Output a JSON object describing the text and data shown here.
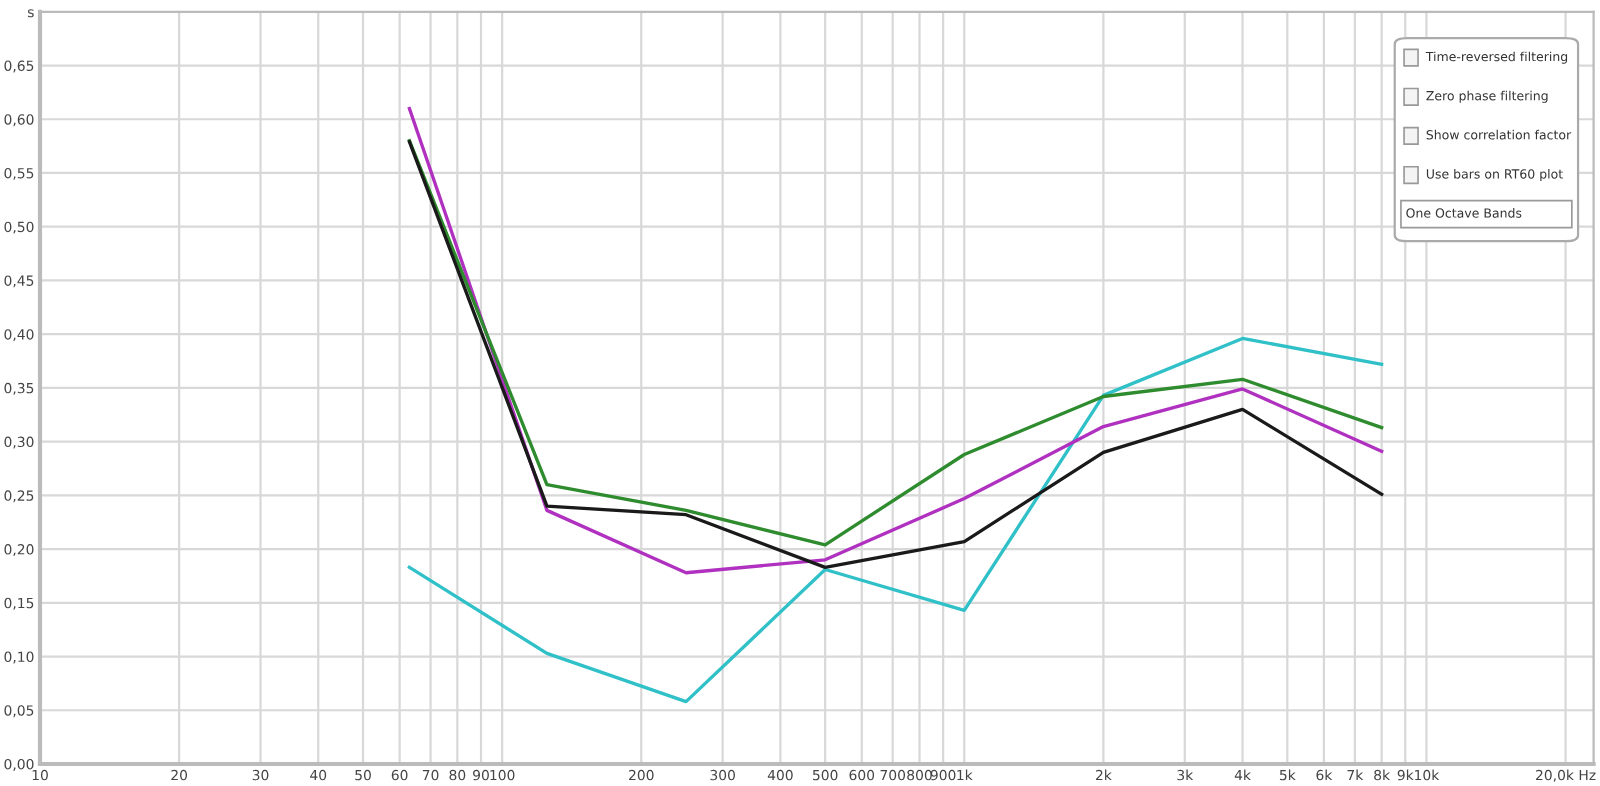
{
  "chart_data": {
    "type": "line",
    "x": [
      63,
      125,
      250,
      500,
      1000,
      2000,
      4000,
      8000
    ],
    "series": [
      {
        "color": "#30c0c8",
        "values": [
          0.183,
          0.103,
          0.058,
          0.181,
          0.143,
          0.343,
          0.396,
          0.372
        ]
      },
      {
        "color": "#b030c0",
        "values": [
          0.61,
          0.236,
          0.178,
          0.19,
          0.247,
          0.314,
          0.349,
          0.291
        ]
      },
      {
        "color": "#2e8b2e",
        "values": [
          0.58,
          0.26,
          0.236,
          0.204,
          0.288,
          0.342,
          0.358,
          0.313
        ]
      },
      {
        "color": "#1a1a1a",
        "values": [
          0.579,
          0.24,
          0.232,
          0.183,
          0.207,
          0.29,
          0.33,
          0.251
        ]
      }
    ],
    "log": "x",
    "xlim": [
      10,
      23000
    ],
    "ylim": [
      0,
      0.7
    ],
    "xticks": [
      10,
      20,
      30,
      40,
      50,
      60,
      70,
      80,
      90,
      100,
      200,
      300,
      400,
      500,
      600,
      700,
      800,
      900,
      {
        "value": 1000,
        "label": "1k"
      },
      {
        "value": 2000,
        "label": "2k"
      },
      {
        "value": 3000,
        "label": "3k"
      },
      {
        "value": 4000,
        "label": "4k"
      },
      {
        "value": 5000,
        "label": "5k"
      },
      {
        "value": 6000,
        "label": "6k"
      },
      {
        "value": 7000,
        "label": "7k"
      },
      {
        "value": 8000,
        "label": "8k"
      },
      {
        "value": 9000,
        "label": "9k"
      },
      {
        "value": 10000,
        "label": "10k"
      },
      {
        "value": 20000,
        "label": "20,0k Hz"
      }
    ],
    "yticks": [
      {
        "value": 0,
        "label": "0,00"
      },
      {
        "value": 0.05,
        "label": "0,05"
      },
      {
        "value": 0.1,
        "label": "0,10"
      },
      {
        "value": 0.15,
        "label": "0,15"
      },
      {
        "value": 0.2,
        "label": "0,20"
      },
      {
        "value": 0.25,
        "label": "0,25"
      },
      {
        "value": 0.3,
        "label": "0,30"
      },
      {
        "value": 0.35,
        "label": "0,35"
      },
      {
        "value": 0.4,
        "label": "0,40"
      },
      {
        "value": 0.45,
        "label": "0,45"
      },
      {
        "value": 0.5,
        "label": "0,50"
      },
      {
        "value": 0.55,
        "label": "0,55"
      },
      {
        "value": 0.6,
        "label": "0,60"
      },
      {
        "value": 0.65,
        "label": "0,65"
      },
      {
        "value": 0.7,
        "label": "s"
      }
    ],
    "grid": true,
    "marker": "none",
    "line_style": "solid",
    "annotations": [
      "Time-reversed filtering",
      "Zero phase filtering",
      "Show correlation factor",
      "Use bars on RT60 plot",
      "One Octave Bands"
    ]
  }
}
